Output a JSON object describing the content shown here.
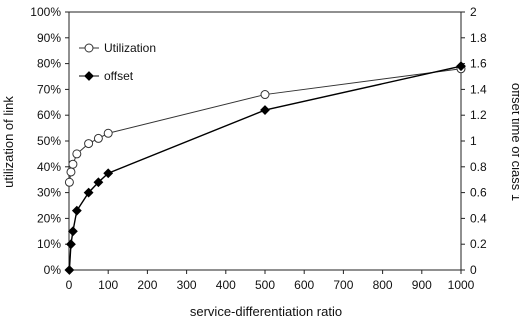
{
  "chart_data": {
    "type": "line",
    "xlabel": "service-differentiation ratio",
    "ylabel_left": "utilization of link",
    "ylabel_right": "offset time of class 1",
    "xlim": [
      0,
      1000
    ],
    "ylim_left": [
      0,
      100
    ],
    "ylim_right": [
      0,
      2
    ],
    "x_ticks": [
      "0",
      "100",
      "200",
      "300",
      "400",
      "500",
      "600",
      "700",
      "800",
      "900",
      "1000"
    ],
    "y_left_ticks": [
      "0%",
      "10%",
      "20%",
      "30%",
      "40%",
      "50%",
      "60%",
      "70%",
      "80%",
      "90%",
      "100%"
    ],
    "y_right_ticks": [
      "0",
      "0.2",
      "0.4",
      "0.6",
      "0.8",
      "1",
      "1.2",
      "1.4",
      "1.6",
      "1.8",
      "2"
    ],
    "grid": false,
    "legend_position": "top-left",
    "series": [
      {
        "name": "Utilization",
        "axis": "left",
        "marker": "open-circle",
        "color": "#333333",
        "x": [
          1,
          5,
          10,
          20,
          50,
          75,
          100,
          500,
          1000
        ],
        "y": [
          34,
          38,
          41,
          45,
          49,
          51,
          53,
          68,
          78
        ]
      },
      {
        "name": "offset",
        "axis": "right",
        "marker": "filled-diamond",
        "color": "#000000",
        "x": [
          1,
          5,
          10,
          20,
          50,
          75,
          100,
          500,
          1000
        ],
        "y": [
          0,
          0.2,
          0.3,
          0.46,
          0.6,
          0.68,
          0.75,
          1.24,
          1.58
        ]
      }
    ]
  }
}
